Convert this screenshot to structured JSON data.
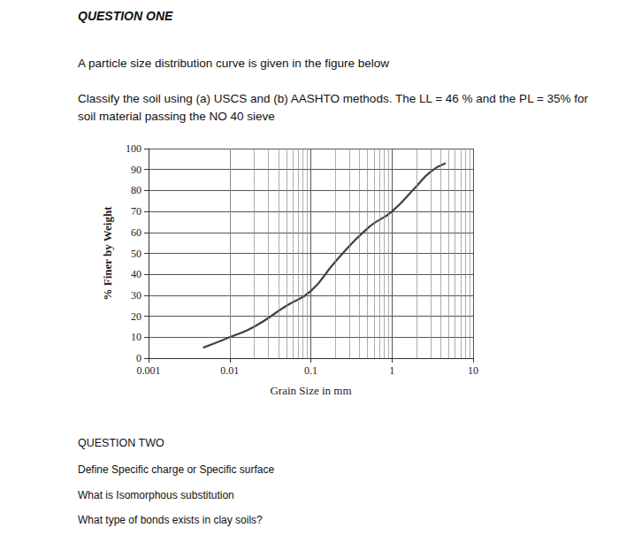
{
  "question_one": {
    "heading": "QUESTION ONE",
    "lines": [
      "A particle size distribution curve is given in the figure below",
      "Classify the soil using (a) USCS and (b) AASHTO methods. The LL = 46 % and the PL = 35% for",
      "soil material passing the NO 40 sieve"
    ]
  },
  "chart_data": {
    "type": "line",
    "x_label": "Grain Size in mm",
    "y_label": "% Finer by Weight",
    "x": [
      0.0047,
      0.01,
      0.02,
      0.05,
      0.1,
      0.2,
      0.5,
      1,
      2,
      3,
      4.6
    ],
    "values": [
      5,
      10,
      15,
      25,
      32,
      46,
      62,
      70,
      82,
      89,
      93
    ],
    "color": "#404040",
    "xlim": [
      0.001,
      10
    ],
    "xticks": [
      0.001,
      0.01,
      0.1,
      1,
      10
    ],
    "ylim": [
      0,
      100
    ],
    "yticks": [
      0,
      10,
      20,
      30,
      40,
      50,
      60,
      70,
      80,
      90,
      100
    ],
    "log": "x",
    "grid": true
  },
  "question_two": {
    "heading": "QUESTION TWO",
    "lines": [
      "Define Specific charge or Specific surface",
      "What is Isomorphous substitution",
      "What type of bonds exists in clay soils?"
    ]
  }
}
